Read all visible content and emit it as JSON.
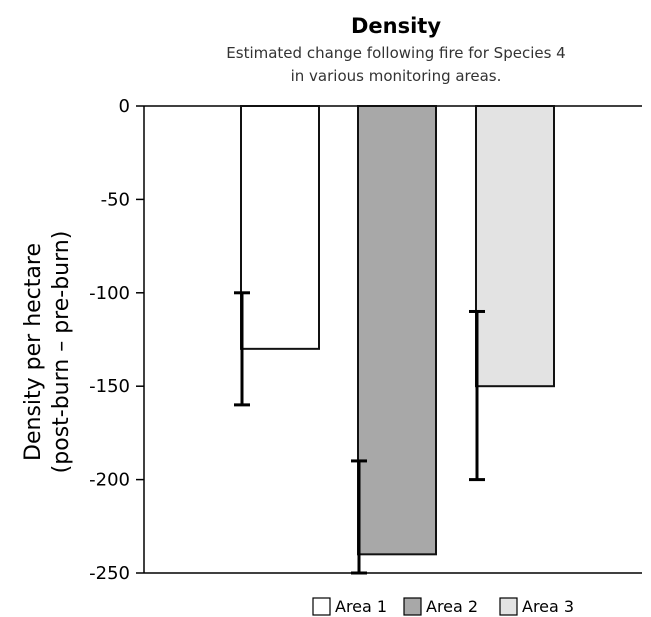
{
  "chart_data": {
    "type": "bar",
    "title": "Density",
    "subtitle": [
      "Estimated change following fire for Species 4",
      "in various monitoring areas."
    ],
    "ylabel": [
      "Density per hectare",
      "(post-burn – pre-burn)"
    ],
    "xlabel": "",
    "ylim": [
      -250,
      0
    ],
    "yticks": [
      0,
      -50,
      -100,
      -150,
      -200,
      -250
    ],
    "legend_position": "bottom",
    "series": [
      {
        "name": "Area 1",
        "value": -130,
        "error_low": -160,
        "error_high": -100,
        "color": "#ffffff"
      },
      {
        "name": "Area 2",
        "value": -240,
        "error_low": -250,
        "error_high": -190,
        "color": "#a8a8a8"
      },
      {
        "name": "Area 3",
        "value": -150,
        "error_low": -200,
        "error_high": -110,
        "color": "#e3e3e3"
      }
    ]
  }
}
